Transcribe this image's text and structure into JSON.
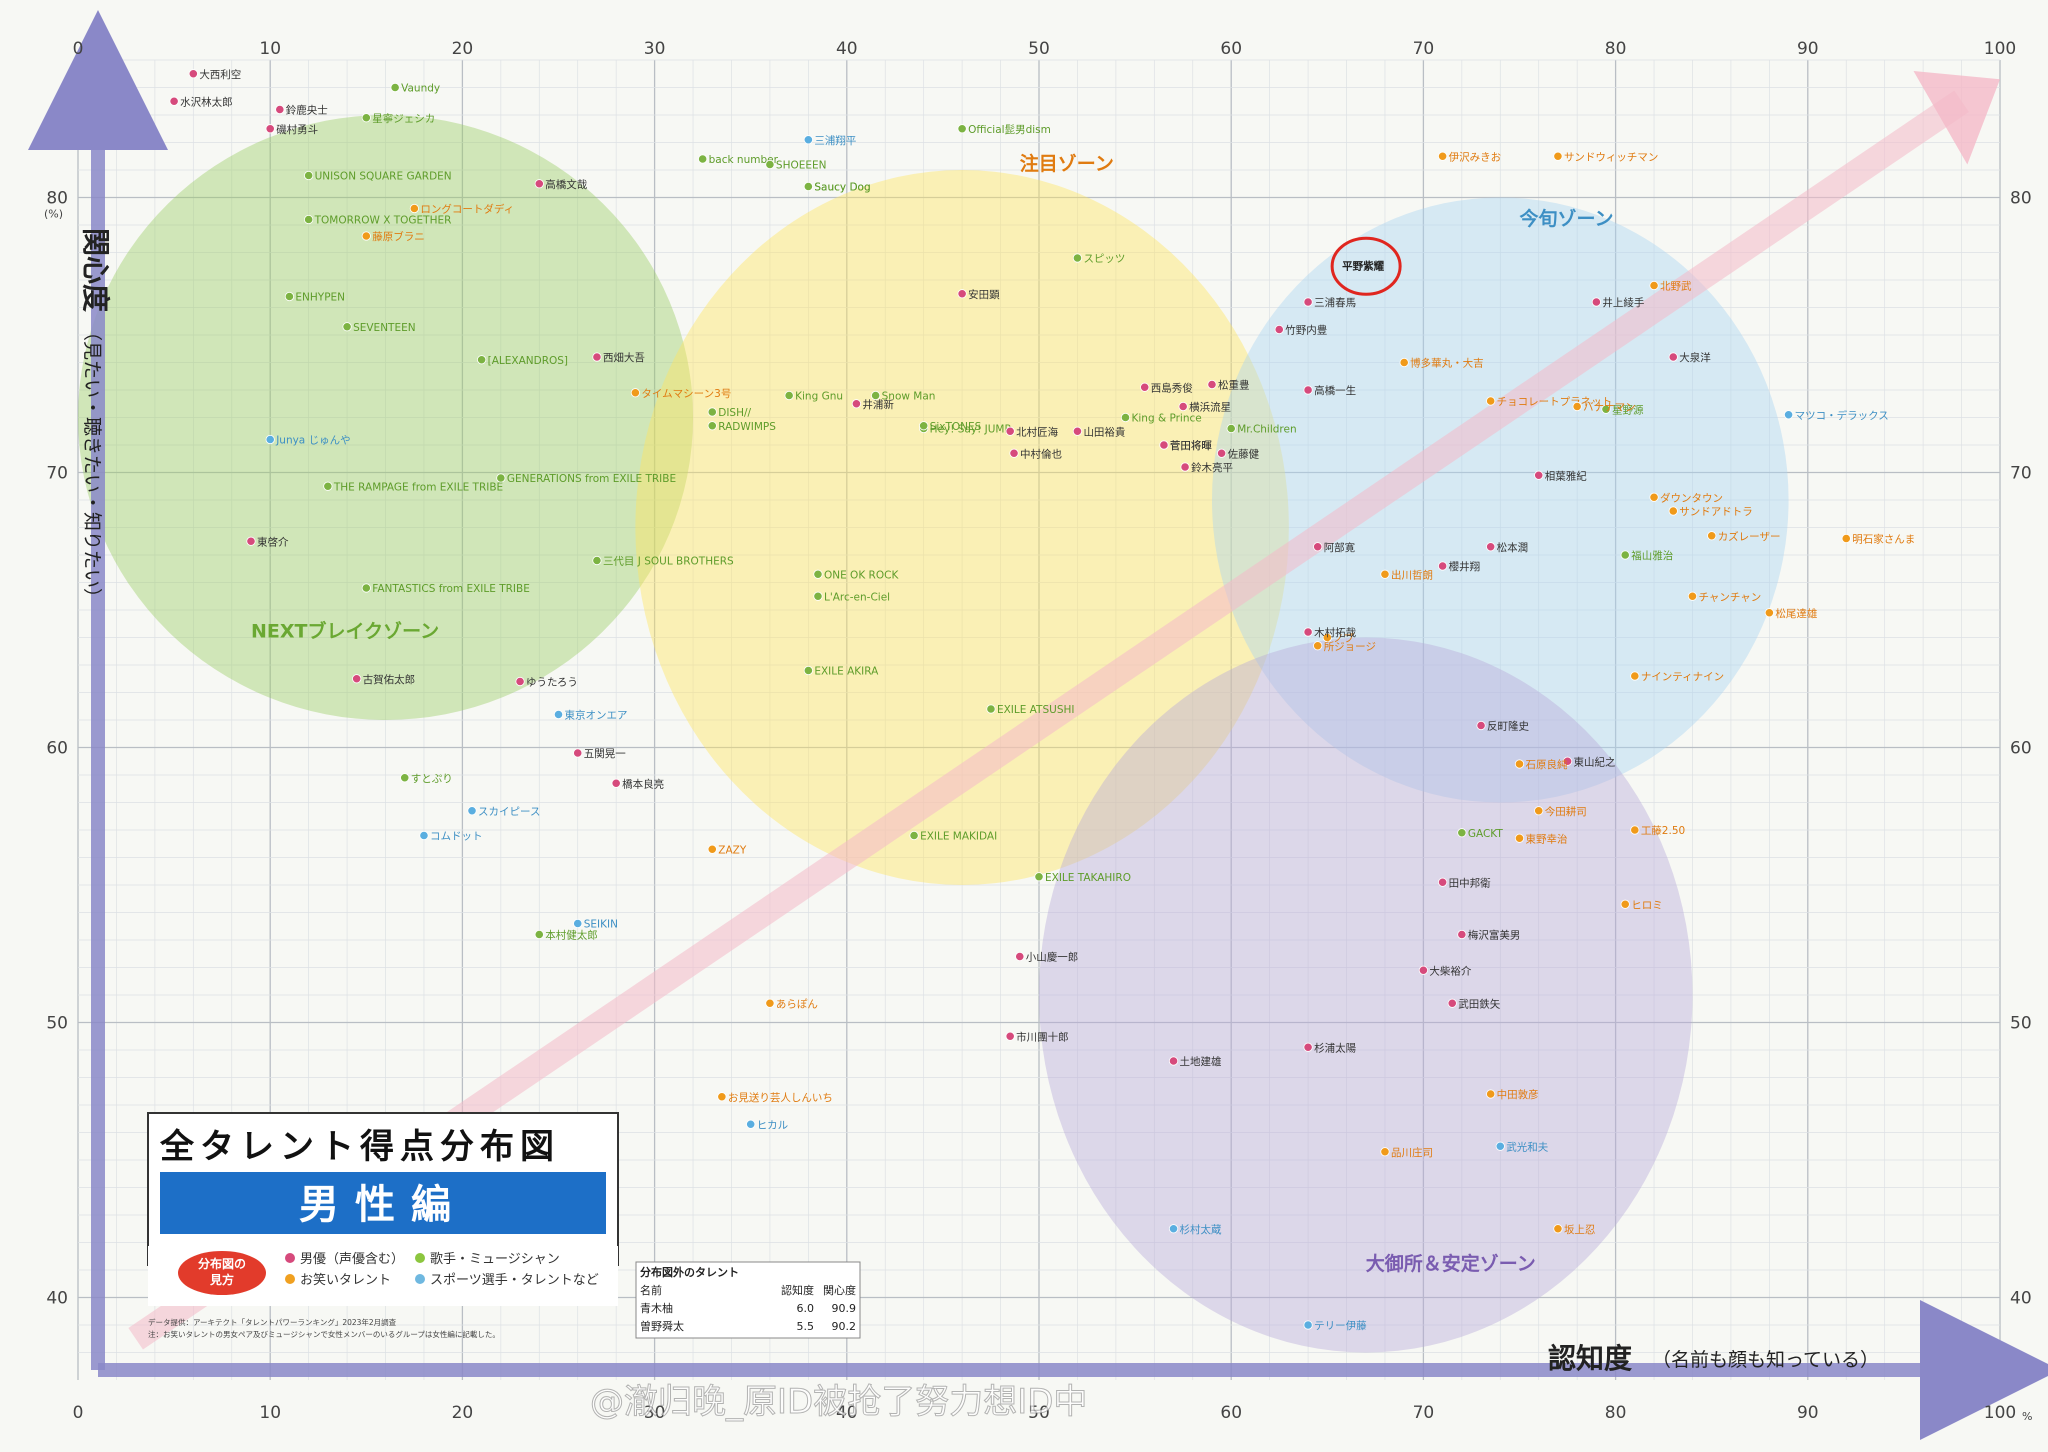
{
  "title": "全タレント得点分布図",
  "subtitle": "男性編",
  "watermark": "@澈归晚_原ID被抢了努力想ID中",
  "legend": {
    "badge_line1": "分布図の",
    "badge_line2": "見方",
    "items": [
      {
        "label": "男優（声優含む）",
        "color": "#d64a7c"
      },
      {
        "label": "歌手・ミュージシャン",
        "color": "#8cc63f"
      },
      {
        "label": "お笑いタレント",
        "color": "#f0a020"
      },
      {
        "label": "スポーツ選手・タレントなど",
        "color": "#6fb8e0"
      }
    ],
    "note1": "データ提供：アーキテクト「タレントパワーランキング」2023年2月調査",
    "note2": "注：お笑いタレントの男女ペア及びミュージシャンで女性メンバーのいるグループは女性編に記載した。"
  },
  "outside_table": {
    "title": "分布図外のタレント",
    "headers": [
      "名前",
      "認知度",
      "関心度"
    ],
    "rows": [
      [
        "青木柚",
        "6.0",
        "90.9"
      ],
      [
        "曽野舜太",
        "5.5",
        "90.2"
      ]
    ]
  },
  "chart_data": {
    "type": "scatter",
    "xlabel": "認知度",
    "xlabel_sub": "（名前も顔も知っている）",
    "ylabel": "関心度",
    "ylabel_sub": "（見たい・聴きたい・知りたい）",
    "xlim": [
      0,
      100
    ],
    "ylim": [
      37,
      85
    ],
    "x_ticks": [
      0,
      10,
      20,
      30,
      40,
      50,
      60,
      70,
      80,
      90,
      100
    ],
    "y_ticks": [
      40,
      50,
      60,
      70,
      80
    ],
    "x_unit": "%",
    "y_unit": "(%)",
    "grid": true,
    "zones": [
      {
        "name": "NEXTブレイクゾーン",
        "color": "#9ccc65",
        "cx": 16,
        "cy": 72,
        "rx": 16,
        "ry": 11,
        "label_x": 9,
        "label_y": 64
      },
      {
        "name": "注目ゾーン",
        "color": "#ffe55c",
        "cx": 46,
        "cy": 68,
        "rx": 17,
        "ry": 13,
        "label_x": 49,
        "label_y": 81
      },
      {
        "name": "今旬ゾーン",
        "color": "#a9d3f0",
        "cx": 74,
        "cy": 69,
        "rx": 15,
        "ry": 11,
        "label_x": 75,
        "label_y": 79
      },
      {
        "name": "大御所＆安定ゾーン",
        "color": "#b8a9d8",
        "cx": 67,
        "cy": 51,
        "rx": 17,
        "ry": 13,
        "label_x": 67,
        "label_y": 41
      }
    ],
    "highlight": {
      "name": "平野紫耀",
      "x": 66.5,
      "y": 77.5
    },
    "points": [
      {
        "name": "大西利空",
        "x": 6,
        "y": 84.5,
        "cat": "actor"
      },
      {
        "name": "鈴鹿央士",
        "x": 10.5,
        "y": 83.2,
        "cat": "actor"
      },
      {
        "name": "Vaundy",
        "x": 16.5,
        "y": 84,
        "cat": "music"
      },
      {
        "name": "星寧ジェシカ",
        "x": 15,
        "y": 82.9,
        "cat": "music"
      },
      {
        "name": "水沢林太郎",
        "x": 5,
        "y": 83.5,
        "cat": "actor"
      },
      {
        "name": "磯村勇斗",
        "x": 10,
        "y": 82.5,
        "cat": "actor"
      },
      {
        "name": "UNISON SQUARE GARDEN",
        "x": 12,
        "y": 80.8,
        "cat": "music"
      },
      {
        "name": "高橋文哉",
        "x": 24,
        "y": 80.5,
        "cat": "actor"
      },
      {
        "name": "ロングコートダディ",
        "x": 17.5,
        "y": 79.6,
        "cat": "comedy"
      },
      {
        "name": "TOMORROW X TOGETHER",
        "x": 12,
        "y": 79.2,
        "cat": "music"
      },
      {
        "name": "藤原ブラニ",
        "x": 15,
        "y": 78.6,
        "cat": "comedy"
      },
      {
        "name": "ENHYPEN",
        "x": 11,
        "y": 76.4,
        "cat": "music"
      },
      {
        "name": "SEVENTEEN",
        "x": 14,
        "y": 75.3,
        "cat": "music"
      },
      {
        "name": "[ALEXANDROS]",
        "x": 21,
        "y": 74.1,
        "cat": "music"
      },
      {
        "name": "西畑大吾",
        "x": 27,
        "y": 74.2,
        "cat": "actor"
      },
      {
        "name": "タイムマシーン3号",
        "x": 29,
        "y": 72.9,
        "cat": "comedy"
      },
      {
        "name": "King Gnu",
        "x": 37,
        "y": 72.8,
        "cat": "music"
      },
      {
        "name": "井浦新",
        "x": 40.5,
        "y": 72.5,
        "cat": "actor"
      },
      {
        "name": "DISH//",
        "x": 33,
        "y": 72.2,
        "cat": "music"
      },
      {
        "name": "RADWIMPS",
        "x": 33,
        "y": 71.7,
        "cat": "music"
      },
      {
        "name": "Hey! Say! JUMP",
        "x": 44,
        "y": 71.6,
        "cat": "music"
      },
      {
        "name": "King & Prince",
        "x": 54.5,
        "y": 72,
        "cat": "music"
      },
      {
        "name": "Mr.Children",
        "x": 60,
        "y": 71.6,
        "cat": "music"
      },
      {
        "name": "北村匠海",
        "x": 48.5,
        "y": 71.5,
        "cat": "actor"
      },
      {
        "name": "山田裕貴",
        "x": 52,
        "y": 71.5,
        "cat": "actor"
      },
      {
        "name": "松重豊",
        "x": 59,
        "y": 73.2,
        "cat": "actor"
      },
      {
        "name": "西島秀俊",
        "x": 55.5,
        "y": 73.1,
        "cat": "actor"
      },
      {
        "name": "横浜流星",
        "x": 57.5,
        "y": 72.4,
        "cat": "actor"
      },
      {
        "name": "中村倫也",
        "x": 48.7,
        "y": 70.7,
        "cat": "actor"
      },
      {
        "name": "菅田将暉",
        "x": 56.5,
        "y": 71,
        "cat": "actor"
      },
      {
        "name": "佐藤健",
        "x": 59.5,
        "y": 70.7,
        "cat": "actor"
      },
      {
        "name": "鈴木亮平",
        "x": 57.6,
        "y": 70.2,
        "cat": "actor"
      },
      {
        "name": "伊沢みきお",
        "x": 71,
        "y": 81.5,
        "cat": "comedy"
      },
      {
        "name": "サンドウィッチマン",
        "x": 77,
        "y": 81.5,
        "cat": "comedy"
      },
      {
        "name": "高橋一生",
        "x": 64,
        "y": 73,
        "cat": "actor"
      },
      {
        "name": "井上綾手",
        "x": 79,
        "y": 76.2,
        "cat": "actor"
      },
      {
        "name": "北野武",
        "x": 82,
        "y": 76.8,
        "cat": "comedy"
      },
      {
        "name": "星野源",
        "x": 79.5,
        "y": 72.3,
        "cat": "music"
      },
      {
        "name": "大泉洋",
        "x": 83,
        "y": 74.2,
        "cat": "actor"
      },
      {
        "name": "マツコ・デラックス",
        "x": 89,
        "y": 72.1,
        "cat": "sport"
      },
      {
        "name": "明石家さんま",
        "x": 92,
        "y": 67.6,
        "cat": "comedy"
      },
      {
        "name": "ダウンタウン",
        "x": 82,
        "y": 69.1,
        "cat": "comedy"
      },
      {
        "name": "サンドアドトラ",
        "x": 83,
        "y": 68.6,
        "cat": "comedy"
      },
      {
        "name": "カズレーザー",
        "x": 85,
        "y": 67.7,
        "cat": "comedy"
      },
      {
        "name": "チャンチャン",
        "x": 84,
        "y": 65.5,
        "cat": "comedy"
      },
      {
        "name": "松尾達雄",
        "x": 88,
        "y": 64.9,
        "cat": "comedy"
      },
      {
        "name": "ナインティナイン",
        "x": 81,
        "y": 62.6,
        "cat": "comedy"
      },
      {
        "name": "ノブ",
        "x": 65,
        "y": 64,
        "cat": "comedy"
      },
      {
        "name": "出川哲朗",
        "x": 68,
        "y": 66.3,
        "cat": "comedy"
      },
      {
        "name": "阿部寛",
        "x": 64.5,
        "y": 67.3,
        "cat": "actor"
      },
      {
        "name": "木村拓哉",
        "x": 64,
        "y": 64.2,
        "cat": "actor"
      },
      {
        "name": "所ジョージ",
        "x": 64.5,
        "y": 63.7,
        "cat": "comedy"
      },
      {
        "name": "福山雅治",
        "x": 80.5,
        "y": 67,
        "cat": "music"
      },
      {
        "name": "松本潤",
        "x": 73.5,
        "y": 67.3,
        "cat": "actor"
      },
      {
        "name": "櫻井翔",
        "x": 71,
        "y": 66.6,
        "cat": "actor"
      },
      {
        "name": "相葉雅紀",
        "x": 76,
        "y": 69.9,
        "cat": "actor"
      },
      {
        "name": "東山紀之",
        "x": 77.5,
        "y": 59.5,
        "cat": "actor"
      },
      {
        "name": "反町隆史",
        "x": 73,
        "y": 60.8,
        "cat": "actor"
      },
      {
        "name": "石原良純",
        "x": 75,
        "y": 59.4,
        "cat": "comedy"
      },
      {
        "name": "今田耕司",
        "x": 76,
        "y": 57.7,
        "cat": "comedy"
      },
      {
        "name": "東野幸治",
        "x": 75,
        "y": 56.7,
        "cat": "comedy"
      },
      {
        "name": "工藤2.50",
        "x": 81,
        "y": 57,
        "cat": "comedy"
      },
      {
        "name": "GACKT",
        "x": 72,
        "y": 56.9,
        "cat": "music"
      },
      {
        "name": "田中邦衛",
        "x": 71,
        "y": 55.1,
        "cat": "actor"
      },
      {
        "name": "梅沢富美男",
        "x": 72,
        "y": 53.2,
        "cat": "actor"
      },
      {
        "name": "大柴裕介",
        "x": 70,
        "y": 51.9,
        "cat": "actor"
      },
      {
        "name": "武田鉄矢",
        "x": 71.5,
        "y": 50.7,
        "cat": "actor"
      },
      {
        "name": "ヒロミ",
        "x": 80.5,
        "y": 54.3,
        "cat": "comedy"
      },
      {
        "name": "中田敦彦",
        "x": 73.5,
        "y": 47.4,
        "cat": "comedy"
      },
      {
        "name": "武光和夫",
        "x": 74,
        "y": 45.5,
        "cat": "sport"
      },
      {
        "name": "品川庄司",
        "x": 68,
        "y": 45.3,
        "cat": "comedy"
      },
      {
        "name": "坂上忍",
        "x": 77,
        "y": 42.5,
        "cat": "comedy"
      },
      {
        "name": "杉村太蔵",
        "x": 57,
        "y": 42.5,
        "cat": "sport"
      },
      {
        "name": "テリー伊藤",
        "x": 64,
        "y": 39,
        "cat": "sport"
      },
      {
        "name": "土地建雄",
        "x": 57,
        "y": 48.6,
        "cat": "actor"
      },
      {
        "name": "杉浦太陽",
        "x": 64,
        "y": 49.1,
        "cat": "actor"
      },
      {
        "name": "市川團十郎",
        "x": 48.5,
        "y": 49.5,
        "cat": "actor"
      },
      {
        "name": "小山慶一郎",
        "x": 49,
        "y": 52.4,
        "cat": "actor"
      },
      {
        "name": "ヒカル",
        "x": 35,
        "y": 46.3,
        "cat": "sport"
      },
      {
        "name": "お見送り芸人しんいち",
        "x": 33.5,
        "y": 47.3,
        "cat": "comedy"
      },
      {
        "name": "あらぽん",
        "x": 36,
        "y": 50.7,
        "cat": "comedy"
      },
      {
        "name": "ZAZY",
        "x": 33,
        "y": 56.3,
        "cat": "comedy"
      },
      {
        "name": "SEIKIN",
        "x": 26,
        "y": 53.6,
        "cat": "sport"
      },
      {
        "name": "本村健太郎",
        "x": 24,
        "y": 53.2,
        "cat": "music"
      },
      {
        "name": "スカイピース",
        "x": 20.5,
        "y": 57.7,
        "cat": "sport"
      },
      {
        "name": "コムドット",
        "x": 18,
        "y": 56.8,
        "cat": "sport"
      },
      {
        "name": "すとぷり",
        "x": 17,
        "y": 58.9,
        "cat": "music"
      },
      {
        "name": "橋本良亮",
        "x": 28,
        "y": 58.7,
        "cat": "actor"
      },
      {
        "name": "五関晃一",
        "x": 26,
        "y": 59.8,
        "cat": "actor"
      },
      {
        "name": "古賀佑太郎",
        "x": 14.5,
        "y": 62.5,
        "cat": "actor"
      },
      {
        "name": "ゆうたろう",
        "x": 23,
        "y": 62.4,
        "cat": "actor"
      },
      {
        "name": "東京オンエア",
        "x": 25,
        "y": 61.2,
        "cat": "sport"
      },
      {
        "name": "FANTASTICS from EXILE TRIBE",
        "x": 15,
        "y": 65.8,
        "cat": "music"
      },
      {
        "name": "東啓介",
        "x": 9,
        "y": 67.5,
        "cat": "actor"
      },
      {
        "name": "Junya じゅんや",
        "x": 10,
        "y": 71.2,
        "cat": "sport"
      },
      {
        "name": "THE RAMPAGE from EXILE TRIBE",
        "x": 13,
        "y": 69.5,
        "cat": "music"
      },
      {
        "name": "GENERATIONS from EXILE TRIBE",
        "x": 22,
        "y": 69.8,
        "cat": "music"
      },
      {
        "name": "三代目 J SOUL BROTHERS",
        "x": 27,
        "y": 66.8,
        "cat": "music"
      },
      {
        "name": "EXILE AKIRA",
        "x": 38,
        "y": 62.8,
        "cat": "music"
      },
      {
        "name": "EXILE ATSUSHI",
        "x": 47.5,
        "y": 61.4,
        "cat": "music"
      },
      {
        "name": "EXILE MAKIDAI",
        "x": 43.5,
        "y": 56.8,
        "cat": "music"
      },
      {
        "name": "EXILE TAKAHIRO",
        "x": 50,
        "y": 55.3,
        "cat": "music"
      },
      {
        "name": "ONE OK ROCK",
        "x": 38.5,
        "y": 66.3,
        "cat": "music"
      },
      {
        "name": "L'Arc-en-Ciel",
        "x": 38.5,
        "y": 65.5,
        "cat": "music"
      },
      {
        "name": "SixTONES",
        "x": 44,
        "y": 71.7,
        "cat": "music"
      },
      {
        "name": "Snow Man",
        "x": 41.5,
        "y": 72.8,
        "cat": "music"
      },
      {
        "name": "三浦春馬",
        "x": 64,
        "y": 76.2,
        "cat": "actor"
      },
      {
        "name": "竹野内豊",
        "x": 62.5,
        "y": 75.2,
        "cat": "actor"
      },
      {
        "name": "博多華丸・大吉",
        "x": 69,
        "y": 74,
        "cat": "comedy"
      },
      {
        "name": "チョコレートプラネット",
        "x": 73.5,
        "y": 72.6,
        "cat": "comedy"
      },
      {
        "name": "バナナマン",
        "x": 78,
        "y": 72.4,
        "cat": "comedy"
      },
      {
        "name": "Official髭男dism",
        "x": 46,
        "y": 82.5,
        "cat": "music"
      },
      {
        "name": "Saucy Dog",
        "x": 38,
        "y": 80.4,
        "cat": "music"
      },
      {
        "name": "back number",
        "x": 32.5,
        "y": 81.4,
        "cat": "music"
      },
      {
        "name": "三浦翔平",
        "x": 38,
        "y": 82.1,
        "cat": "sport"
      },
      {
        "name": "SHOEEEN",
        "x": 36,
        "y": 81.2,
        "cat": "music"
      },
      {
        "name": "Saucy Dog",
        "x": 38,
        "y": 80.4,
        "cat": "music"
      },
      {
        "name": "スピッツ",
        "x": 52,
        "y": 77.8,
        "cat": "music"
      },
      {
        "name": "安田顕",
        "x": 46,
        "y": 76.5,
        "cat": "actor"
      },
      {
        "name": "菅田将暉",
        "x": 56.5,
        "y": 71,
        "cat": "actor"
      }
    ]
  }
}
